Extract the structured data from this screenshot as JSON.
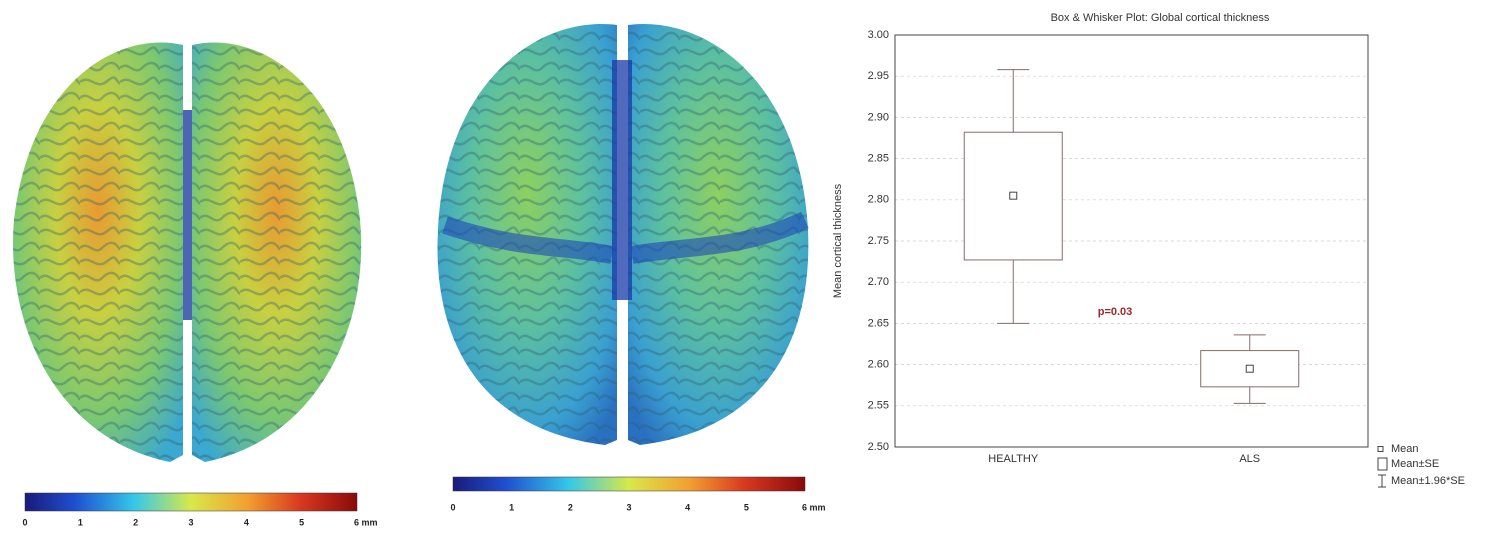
{
  "chart_data": [
    {
      "type": "colorbar",
      "xlim": [
        0,
        6
      ],
      "xticks": [
        0,
        1,
        2,
        3,
        4,
        5,
        {
          "value": 6,
          "label": "6 mm"
        }
      ]
    },
    {
      "type": "colorbar",
      "xlim": [
        0,
        6
      ],
      "xticks": [
        0,
        1,
        2,
        3,
        4,
        5,
        {
          "value": 6,
          "label": "6 mm"
        }
      ]
    },
    {
      "type": "box",
      "title": "Box & Whisker Plot: Global cortical thickness",
      "y_label": "Mean cortical thickness",
      "categories": [
        "HEALTHY",
        "ALS"
      ],
      "mean": [
        2.805,
        2.595
      ],
      "se_range": [
        [
          2.727,
          2.882
        ],
        [
          2.573,
          2.617
        ]
      ],
      "ci_range": [
        [
          2.65,
          2.958
        ],
        [
          2.553,
          2.636
        ]
      ],
      "ylim": [
        2.5,
        3.0
      ],
      "yticks": [
        {
          "value": 2.5,
          "label": "2.50"
        },
        2.55,
        {
          "value": 2.6,
          "label": "2.60"
        },
        2.65,
        {
          "value": 2.7,
          "label": "2.70"
        },
        2.75,
        {
          "value": 2.8,
          "label": "2.80"
        },
        2.85,
        {
          "value": 2.9,
          "label": "2.90"
        },
        2.95,
        {
          "value": 3.0,
          "label": "3.00"
        }
      ],
      "grid": true,
      "annotation": "p=0.03",
      "legend": [
        "Mean",
        "Mean±SE",
        "Mean±1.96*SE"
      ]
    }
  ]
}
